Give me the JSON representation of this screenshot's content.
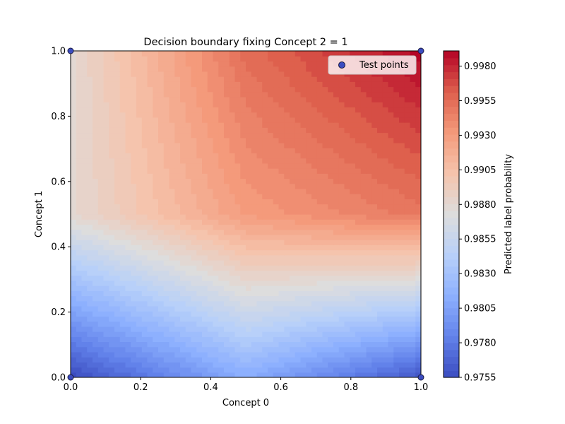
{
  "chart_data": {
    "type": "heatmap",
    "subtype": "filled-contour",
    "title": "Decision boundary fixing Concept 2 = 1",
    "xlabel": "Concept 0",
    "ylabel": "Concept 1",
    "xlim": [
      0.0,
      1.0
    ],
    "ylim": [
      0.0,
      1.0
    ],
    "xticks": [
      "0.0",
      "0.2",
      "0.4",
      "0.6",
      "0.8",
      "1.0"
    ],
    "yticks": [
      "0.0",
      "0.2",
      "0.4",
      "0.6",
      "0.8",
      "1.0"
    ],
    "colormap": "coolwarm",
    "colorbar": {
      "label": "Predicted label probability",
      "range": [
        0.9755,
        0.9991
      ],
      "ticks": [
        0.9755,
        0.978,
        0.9805,
        0.983,
        0.9855,
        0.988,
        0.9905,
        0.993,
        0.9955,
        0.998
      ],
      "tick_labels": [
        "0.9755",
        "0.9780",
        "0.9805",
        "0.9830",
        "0.9855",
        "0.9880",
        "0.9905",
        "0.9930",
        "0.9955",
        "0.9980"
      ]
    },
    "surface_samples": {
      "concept0": [
        0.0,
        0.5,
        1.0
      ],
      "concept1": [
        0.0,
        0.5,
        1.0
      ],
      "probability": [
        [
          0.9755,
          0.9812,
          0.976
        ],
        [
          0.988,
          0.993,
          0.995
        ],
        [
          0.988,
          0.9955,
          0.9991
        ]
      ]
    },
    "scatter": {
      "name": "Test points",
      "points": [
        [
          0,
          0
        ],
        [
          0,
          1
        ],
        [
          1,
          0
        ],
        [
          1,
          1
        ]
      ],
      "color": "#3b4cc0"
    },
    "legend": {
      "position": "top-right",
      "entries": [
        "Test points"
      ]
    },
    "grid": false
  }
}
